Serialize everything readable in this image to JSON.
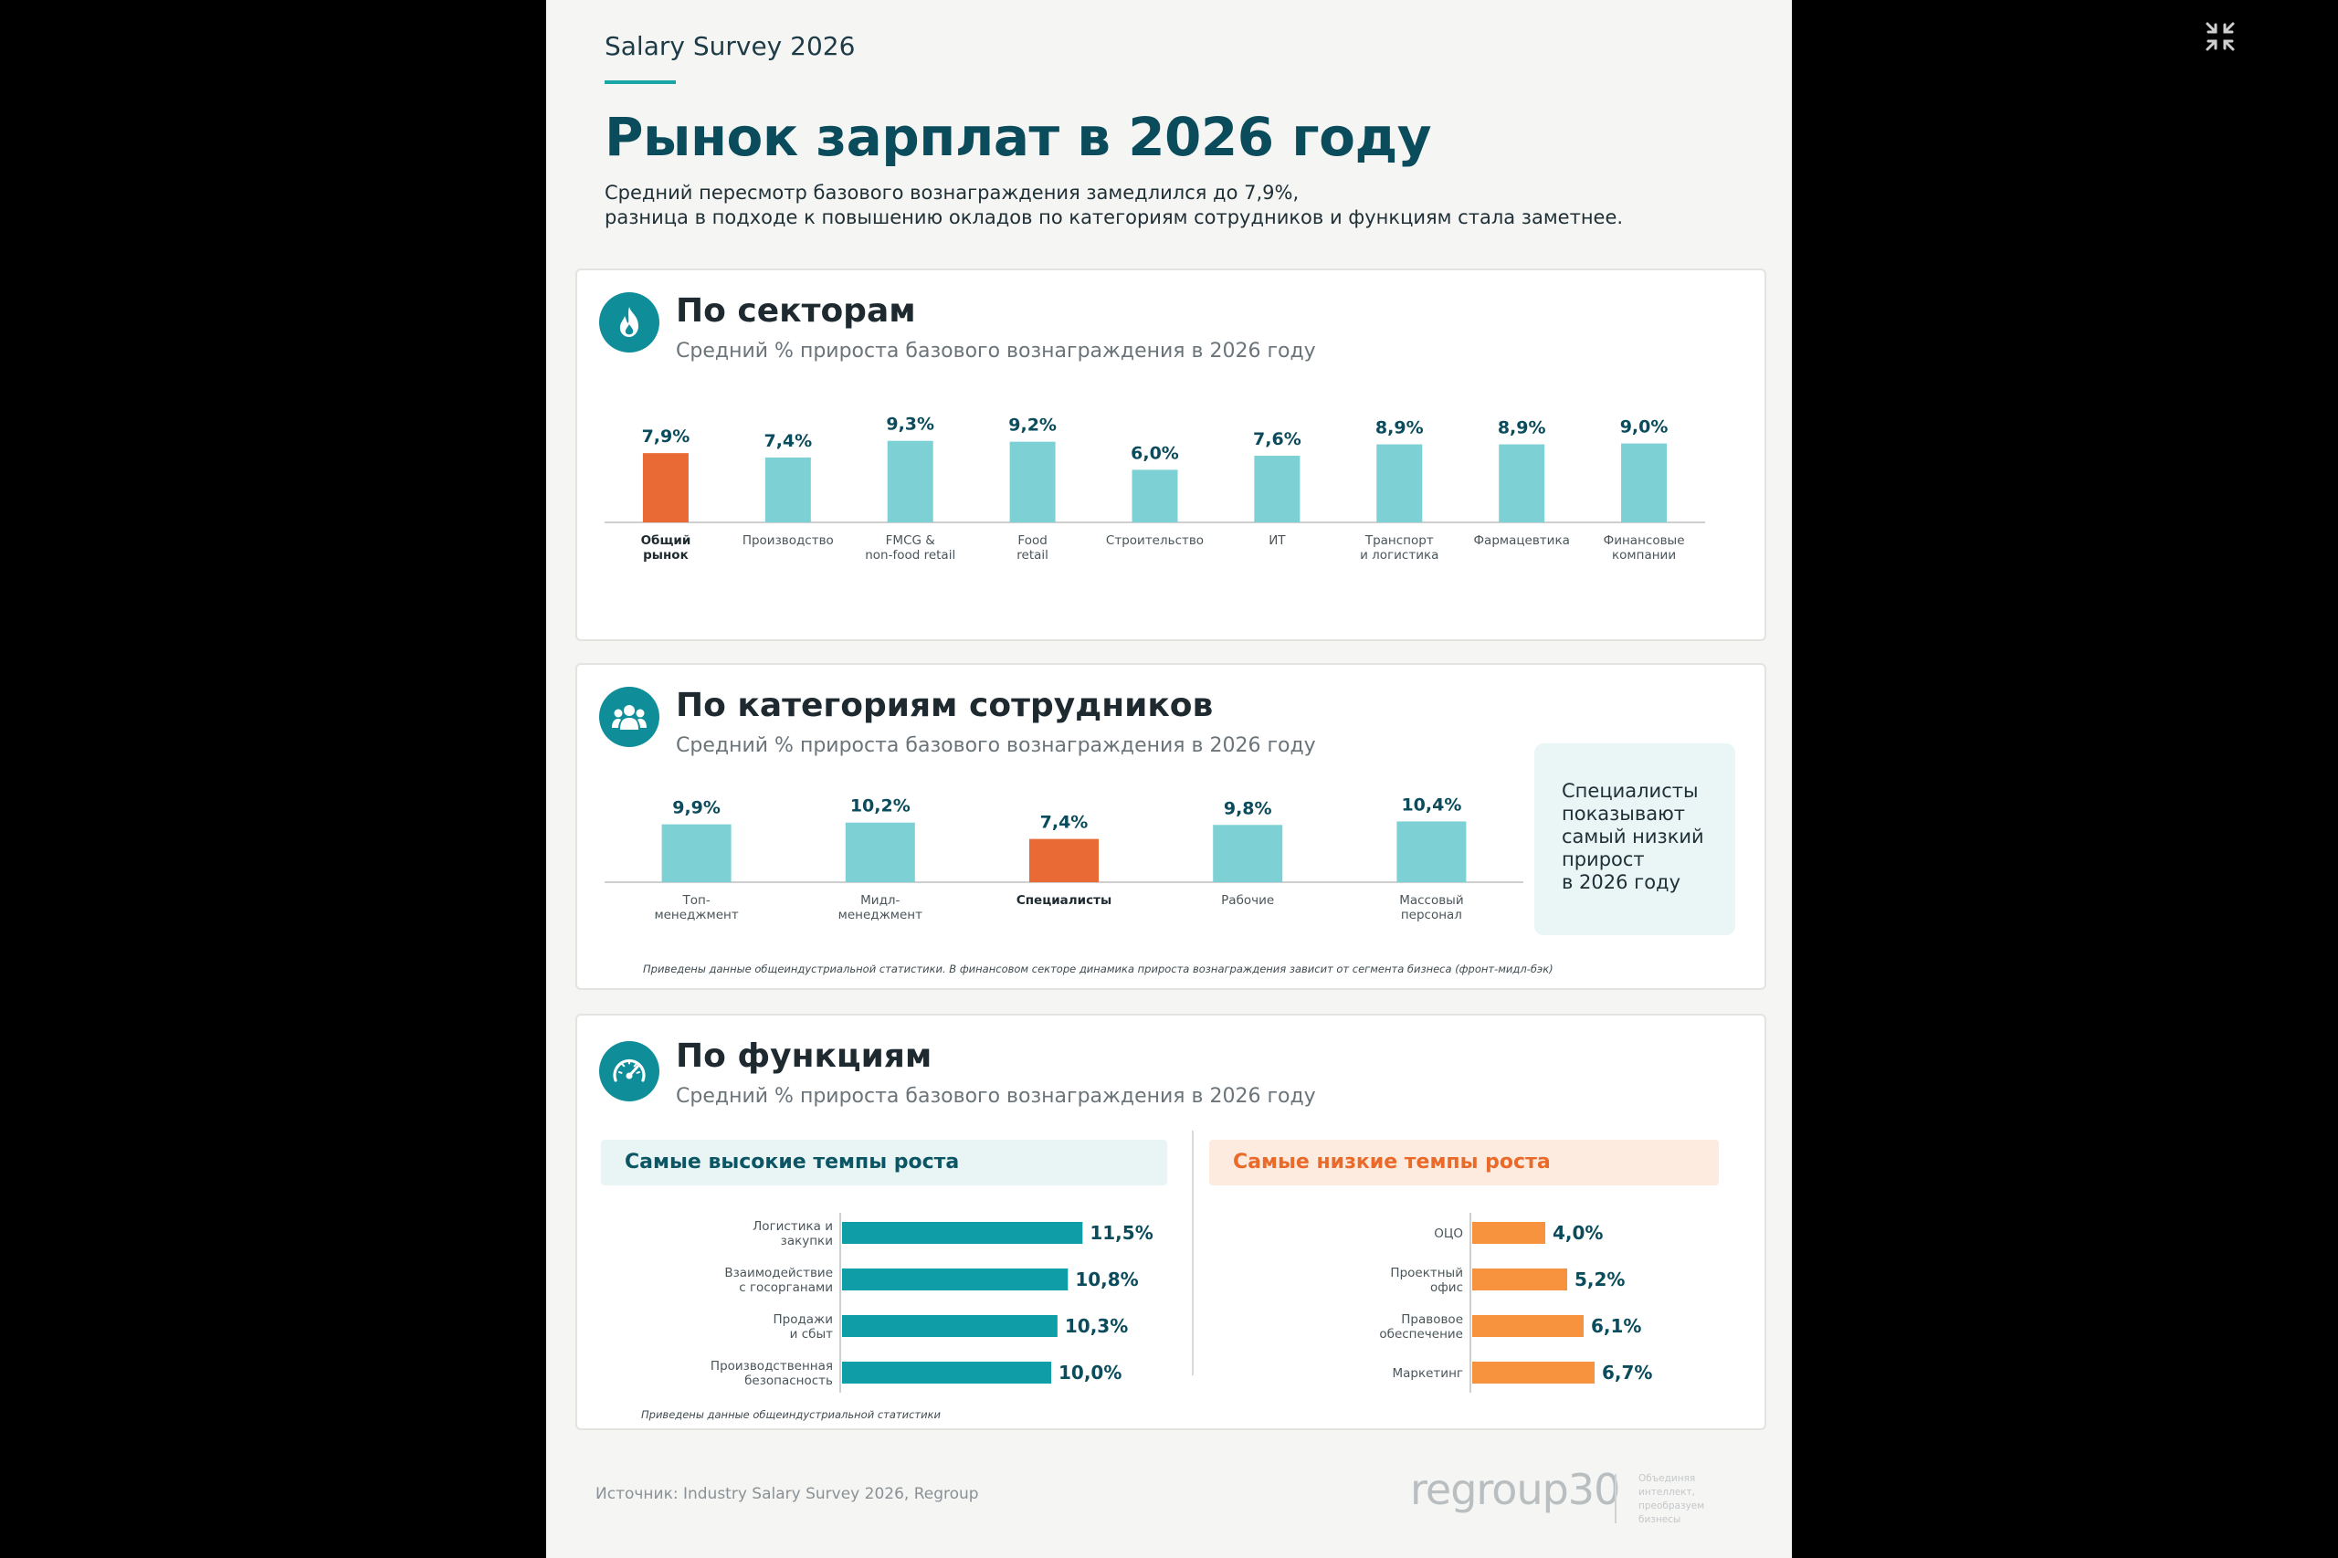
{
  "header": {
    "brand": "Salary Survey 2026",
    "title": "Рынок зарплат в 2026 году",
    "lead_1": "Средний пересмотр базового вознаграждения замедлился до 7,9%,",
    "lead_2": "разница в подходе к повышению окладов по категориям сотрудников и функциям стала заметнее."
  },
  "colors": {
    "teal_bar": "#7dd1d5",
    "highlight": "#ea6a36",
    "teal_dark": "#0f9ea8",
    "orange": "#f7923f",
    "heading": "#0a4b5c"
  },
  "icons": {
    "sectors": "flame-icon",
    "categories": "people-group-icon",
    "functions": "speedometer-icon",
    "exit": "exit-fullscreen-icon"
  },
  "chart_data": [
    {
      "type": "bar",
      "title": "По секторам",
      "subtitle": "Средний % прироста базового вознаграждения в 2026 году",
      "categories": [
        "Общий рынок",
        "Производство",
        "FMCG & non-food retail",
        "Food retail",
        "Строительство",
        "ИТ",
        "Транспорт и логистика",
        "Фармацевтика",
        "Финансовые компании"
      ],
      "category_lines": [
        [
          "Общий",
          "рынок"
        ],
        [
          "Производство"
        ],
        [
          "FMCG &",
          "non-food retail"
        ],
        [
          "Food",
          "retail"
        ],
        [
          "Строительство"
        ],
        [
          "ИТ"
        ],
        [
          "Транспорт",
          "и логистика"
        ],
        [
          "Фармацевтика"
        ],
        [
          "Финансовые",
          "компании"
        ]
      ],
      "values": [
        7.9,
        7.4,
        9.3,
        9.2,
        6.0,
        7.6,
        8.9,
        8.9,
        9.0
      ],
      "labels": [
        "7,9%",
        "7,4%",
        "9,3%",
        "9,2%",
        "6,0%",
        "7,6%",
        "8,9%",
        "8,9%",
        "9,0%"
      ],
      "highlight": [
        0
      ]
    },
    {
      "type": "bar",
      "title": "По категориям сотрудников",
      "subtitle": "Средний % прироста базового вознаграждения в 2026 году",
      "categories": [
        "Топ-менеджмент",
        "Мидл-менеджмент",
        "Специалисты",
        "Рабочие",
        "Массовый персонал"
      ],
      "category_lines": [
        [
          "Топ-",
          "менеджмент"
        ],
        [
          "Мидл-",
          "менеджмент"
        ],
        [
          "Специалисты"
        ],
        [
          "Рабочие"
        ],
        [
          "Массовый",
          "персонал"
        ]
      ],
      "values": [
        9.9,
        10.2,
        7.4,
        9.8,
        10.4
      ],
      "labels": [
        "9,9%",
        "10,2%",
        "7,4%",
        "9,8%",
        "10,4%"
      ],
      "highlight": [
        2
      ],
      "callout": "Специалисты\nпоказывают\nсамый низкий\nприрост\nв 2026 году",
      "note": "Приведены данные общеиндустриальной статистики. В финансовом секторе динамика прироста вознаграждения зависит от сегмента бизнеса (фронт-мидл-бэк)"
    },
    {
      "type": "bar",
      "orientation": "horizontal",
      "title": "Самые высокие темпы роста",
      "categories": [
        "Логистика и закупки",
        "Взаимодействие с госорганами",
        "Продажи и сбыт",
        "Производственная безопасность"
      ],
      "category_lines": [
        [
          "Логистика и",
          "закупки"
        ],
        [
          "Взаимодействие",
          "с госорганами"
        ],
        [
          "Продажи",
          "и сбыт"
        ],
        [
          "Производственная",
          "безопасность"
        ]
      ],
      "values": [
        11.5,
        10.8,
        10.3,
        10.0
      ],
      "labels": [
        "11,5%",
        "10,8%",
        "10,3%",
        "10,0%"
      ]
    },
    {
      "type": "bar",
      "orientation": "horizontal",
      "title": "Самые низкие темпы роста",
      "categories": [
        "ОЦО",
        "Проектный офис",
        "Правовое обеспечение",
        "Маркетинг"
      ],
      "category_lines": [
        [
          "ОЦО"
        ],
        [
          "Проектный",
          "офис"
        ],
        [
          "Правовое",
          "обеспечение"
        ],
        [
          "Маркетинг"
        ]
      ],
      "values": [
        4.0,
        5.2,
        6.1,
        6.7
      ],
      "labels": [
        "4,0%",
        "5,2%",
        "6,1%",
        "6,7%"
      ]
    }
  ],
  "functions": {
    "title": "По функциям",
    "subtitle": "Средний % прироста базового вознаграждения в 2026 году",
    "note": "Приведены данные общеиндустриальной статистики"
  },
  "footer": {
    "source": "Источник: Industry Salary Survey 2026, Regroup",
    "logo": "regroup30",
    "tagline": "Объединяя\nинтеллект,\nпреобразуем\nбизнесы"
  }
}
